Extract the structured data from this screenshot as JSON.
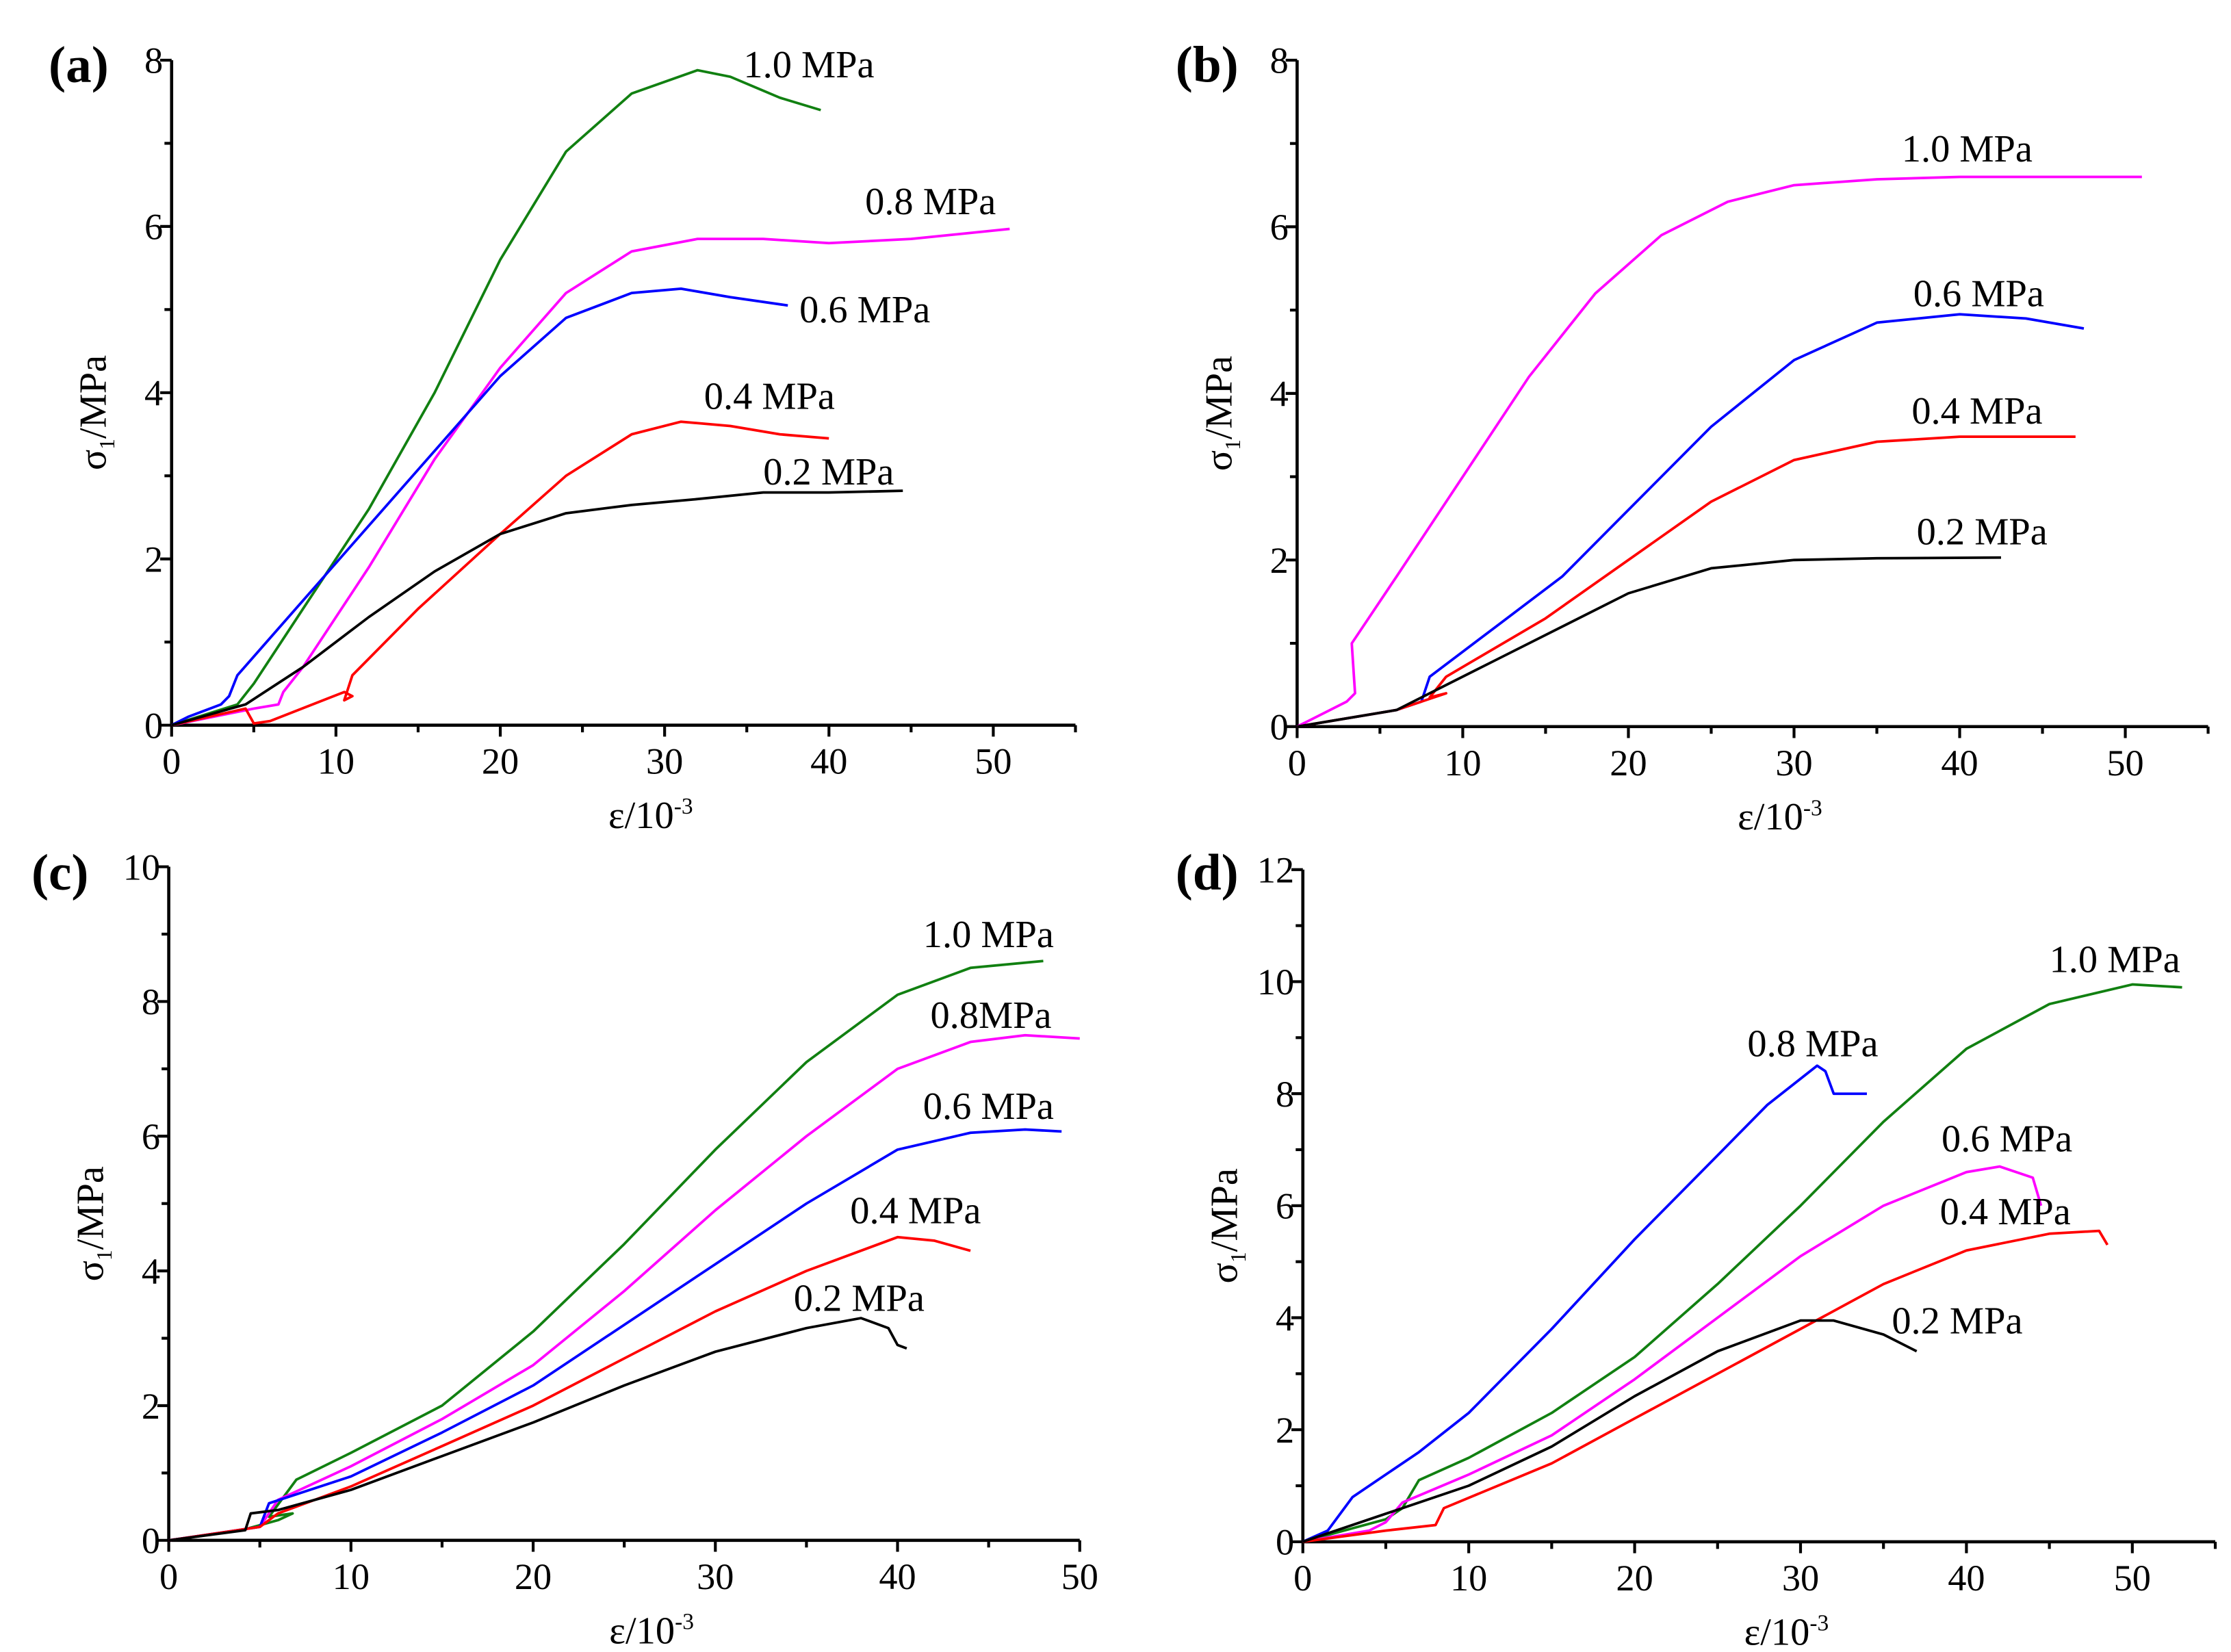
{
  "chart_data": [
    {
      "type": "line",
      "panel_label": "(a)",
      "xlabel_main": "ε/10",
      "xlabel_sup": "-3",
      "ylabel_main": "σ",
      "ylabel_sub": "1",
      "ylabel_rest": "/MPa",
      "xlim": [
        0,
        55
      ],
      "ylim": [
        0,
        8
      ],
      "xticks": [
        0,
        10,
        20,
        30,
        40,
        50
      ],
      "xminor": [
        5,
        15,
        25,
        35,
        45,
        55
      ],
      "yticks": [
        0,
        2,
        4,
        6,
        8
      ],
      "yminor": [
        1,
        3,
        5,
        7
      ],
      "series": [
        {
          "name": "1.0 MPa",
          "color": "#118011",
          "label_at": [
            34.8,
            7.95
          ],
          "x": [
            0,
            4,
            5,
            8,
            12,
            16,
            20,
            24,
            28,
            32,
            34,
            37,
            39.5
          ],
          "y": [
            0,
            0.25,
            0.5,
            1.4,
            2.6,
            4.0,
            5.6,
            6.9,
            7.6,
            7.88,
            7.8,
            7.55,
            7.4
          ]
        },
        {
          "name": "0.8 MPa",
          "color": "#ff00ff",
          "label_at": [
            42.2,
            6.3
          ],
          "x": [
            0,
            5,
            6.5,
            6.8,
            8,
            12,
            16,
            20,
            24,
            28,
            32,
            36,
            40,
            45,
            51
          ],
          "y": [
            0,
            0.2,
            0.25,
            0.4,
            0.7,
            1.9,
            3.2,
            4.3,
            5.2,
            5.7,
            5.85,
            5.85,
            5.8,
            5.85,
            5.97
          ]
        },
        {
          "name": "0.6 MPa",
          "color": "#0000ff",
          "label_at": [
            38.2,
            5.0
          ],
          "x": [
            0,
            1,
            3,
            3.5,
            4,
            8,
            12,
            16,
            20,
            24,
            28,
            31,
            34,
            37.5
          ],
          "y": [
            0,
            0.1,
            0.25,
            0.35,
            0.6,
            1.5,
            2.4,
            3.3,
            4.2,
            4.9,
            5.2,
            5.25,
            5.15,
            5.05
          ]
        },
        {
          "name": "0.4 MPa",
          "color": "#ff0000",
          "label_at": [
            32.4,
            3.96
          ],
          "x": [
            0,
            4.5,
            5,
            6,
            10.5,
            11,
            10.5,
            11,
            15,
            20,
            24,
            28,
            31,
            34,
            37,
            40
          ],
          "y": [
            0,
            0.2,
            0.02,
            0.05,
            0.4,
            0.35,
            0.3,
            0.6,
            1.4,
            2.3,
            3.0,
            3.5,
            3.65,
            3.6,
            3.5,
            3.45
          ]
        },
        {
          "name": "0.2 MPa",
          "color": "#000000",
          "label_at": [
            36.0,
            3.05
          ],
          "x": [
            0,
            4.5,
            8,
            12,
            16,
            20,
            24,
            28,
            32,
            36,
            40,
            44.5
          ],
          "y": [
            0,
            0.25,
            0.7,
            1.3,
            1.85,
            2.3,
            2.55,
            2.65,
            2.72,
            2.8,
            2.8,
            2.82
          ]
        }
      ]
    },
    {
      "type": "line",
      "panel_label": "(b)",
      "xlabel_main": "ε/10",
      "xlabel_sup": "-3",
      "ylabel_main": "σ",
      "ylabel_sub": "1",
      "ylabel_rest": "/MPa",
      "xlim": [
        0,
        55
      ],
      "ylim": [
        0,
        8
      ],
      "xticks": [
        0,
        10,
        20,
        30,
        40,
        50
      ],
      "xminor": [
        5,
        15,
        25,
        35,
        45,
        55
      ],
      "yticks": [
        0,
        2,
        4,
        6,
        8
      ],
      "yminor": [
        1,
        3,
        5,
        7
      ],
      "series": [
        {
          "name": "1.0 MPa",
          "color": "#ff00ff",
          "label_at": [
            36.5,
            6.94
          ],
          "x": [
            0,
            3,
            3.5,
            3.3,
            6,
            10,
            14,
            18,
            22,
            26,
            30,
            35,
            40,
            51
          ],
          "y": [
            0,
            0.3,
            0.4,
            1.0,
            1.8,
            3.0,
            4.2,
            5.2,
            5.9,
            6.3,
            6.5,
            6.57,
            6.6,
            6.6
          ]
        },
        {
          "name": "0.6 MPa",
          "color": "#0000ff",
          "label_at": [
            37.2,
            5.2
          ],
          "x": [
            0,
            6,
            7.5,
            8,
            12,
            16,
            20,
            25,
            30,
            35,
            40,
            44,
            47.5
          ],
          "y": [
            0,
            0.2,
            0.3,
            0.6,
            1.2,
            1.8,
            2.6,
            3.6,
            4.4,
            4.85,
            4.95,
            4.9,
            4.78
          ]
        },
        {
          "name": "0.4 MPa",
          "color": "#ff0000",
          "label_at": [
            37.1,
            3.79
          ],
          "x": [
            0,
            6,
            9,
            8,
            9,
            15,
            20,
            25,
            30,
            35,
            40,
            47
          ],
          "y": [
            0,
            0.2,
            0.4,
            0.35,
            0.6,
            1.3,
            2.0,
            2.7,
            3.2,
            3.42,
            3.48,
            3.48
          ]
        },
        {
          "name": "0.2 MPa",
          "color": "#000000",
          "label_at": [
            37.4,
            2.34
          ],
          "x": [
            0,
            6,
            8,
            12,
            16,
            20,
            25,
            30,
            35,
            42.5
          ],
          "y": [
            0,
            0.2,
            0.4,
            0.8,
            1.2,
            1.6,
            1.9,
            2.0,
            2.02,
            2.03
          ]
        }
      ]
    },
    {
      "type": "line",
      "panel_label": "(c)",
      "xlabel_main": "ε/10",
      "xlabel_sup": "-3",
      "ylabel_main": "σ",
      "ylabel_sub": "1",
      "ylabel_rest": "/MPa",
      "xlim": [
        0,
        50
      ],
      "ylim": [
        0,
        10
      ],
      "xticks": [
        0,
        10,
        20,
        30,
        40,
        50
      ],
      "xminor": [
        5,
        15,
        25,
        35,
        45
      ],
      "yticks": [
        0,
        2,
        4,
        6,
        8,
        10
      ],
      "yminor": [
        1,
        3,
        5,
        7,
        9
      ],
      "series": [
        {
          "name": "1.0 MPa",
          "color": "#118011",
          "label_at": [
            41.4,
            9.0
          ],
          "x": [
            0,
            4,
            6,
            6.8,
            5.5,
            7,
            10,
            15,
            20,
            25,
            30,
            35,
            40,
            44,
            48
          ],
          "y": [
            0,
            0.15,
            0.3,
            0.4,
            0.35,
            0.9,
            1.3,
            2.0,
            3.1,
            4.4,
            5.8,
            7.1,
            8.1,
            8.5,
            8.6
          ]
        },
        {
          "name": "0.8MPa",
          "color": "#ff00ff",
          "label_at": [
            41.8,
            7.8
          ],
          "x": [
            0,
            5,
            6,
            10,
            15,
            20,
            25,
            30,
            35,
            40,
            44,
            47,
            50
          ],
          "y": [
            0,
            0.2,
            0.6,
            1.1,
            1.8,
            2.6,
            3.7,
            4.9,
            6.0,
            7.0,
            7.4,
            7.5,
            7.45
          ]
        },
        {
          "name": "0.6 MPa",
          "color": "#0000ff",
          "label_at": [
            41.4,
            6.45
          ],
          "x": [
            0,
            5,
            5.5,
            10,
            15,
            20,
            25,
            30,
            35,
            40,
            44,
            47,
            49
          ],
          "y": [
            0,
            0.2,
            0.55,
            0.95,
            1.6,
            2.3,
            3.2,
            4.1,
            5.0,
            5.8,
            6.05,
            6.1,
            6.07
          ]
        },
        {
          "name": "0.4 MPa",
          "color": "#ff0000",
          "label_at": [
            37.4,
            4.9
          ],
          "x": [
            0,
            5,
            6,
            10,
            15,
            20,
            25,
            30,
            35,
            40,
            42,
            44
          ],
          "y": [
            0,
            0.2,
            0.4,
            0.8,
            1.4,
            2.0,
            2.7,
            3.4,
            4.0,
            4.5,
            4.45,
            4.3
          ]
        },
        {
          "name": "0.2 MPa",
          "color": "#000000",
          "label_at": [
            34.3,
            3.6
          ],
          "x": [
            0,
            4.2,
            4.5,
            6,
            10,
            15,
            20,
            25,
            30,
            35,
            38,
            39.5,
            40,
            40.5
          ],
          "y": [
            0,
            0.15,
            0.4,
            0.45,
            0.75,
            1.25,
            1.75,
            2.3,
            2.8,
            3.15,
            3.3,
            3.15,
            2.9,
            2.85
          ]
        }
      ]
    },
    {
      "type": "line",
      "panel_label": "(d)",
      "xlabel_main": "ε/10",
      "xlabel_sup": "-3",
      "ylabel_main": "σ",
      "ylabel_sub": "1",
      "ylabel_rest": "/MPa",
      "xlim": [
        0,
        55
      ],
      "ylim": [
        0,
        12
      ],
      "xticks": [
        0,
        10,
        20,
        30,
        40,
        50
      ],
      "xminor": [
        5,
        15,
        25,
        35,
        45,
        55
      ],
      "yticks": [
        0,
        2,
        4,
        6,
        8,
        10,
        12
      ],
      "yminor": [
        1,
        3,
        5,
        7,
        9,
        11
      ],
      "series": [
        {
          "name": "1.0 MPa",
          "color": "#118011",
          "label_at": [
            45.0,
            10.4
          ],
          "x": [
            0,
            5,
            6,
            7,
            10,
            15,
            20,
            25,
            30,
            35,
            40,
            45,
            50,
            53
          ],
          "y": [
            0,
            0.4,
            0.6,
            1.1,
            1.5,
            2.3,
            3.3,
            4.6,
            6.0,
            7.5,
            8.8,
            9.6,
            9.95,
            9.9
          ]
        },
        {
          "name": "0.8 MPa",
          "color": "#0000ff",
          "label_at": [
            26.8,
            8.9
          ],
          "x": [
            0,
            1.5,
            3,
            7,
            10,
            15,
            20,
            25,
            28,
            31,
            31.5,
            32,
            33,
            34
          ],
          "y": [
            0,
            0.2,
            0.8,
            1.6,
            2.3,
            3.8,
            5.4,
            6.9,
            7.8,
            8.5,
            8.4,
            8.0,
            8.0,
            8.0
          ]
        },
        {
          "name": "0.6 MPa",
          "color": "#ff00ff",
          "label_at": [
            38.5,
            7.2
          ],
          "x": [
            0,
            4,
            5,
            6,
            10,
            15,
            20,
            25,
            30,
            35,
            40,
            42,
            44,
            44.5
          ],
          "y": [
            0,
            0.2,
            0.35,
            0.7,
            1.2,
            1.9,
            2.9,
            4.0,
            5.1,
            6.0,
            6.6,
            6.7,
            6.5,
            6.0
          ]
        },
        {
          "name": "0.4 MPa",
          "color": "#ff0000",
          "label_at": [
            38.4,
            5.9
          ],
          "x": [
            0,
            5,
            8,
            8.5,
            15,
            20,
            25,
            30,
            35,
            40,
            45,
            48,
            48.5
          ],
          "y": [
            0,
            0.2,
            0.3,
            0.6,
            1.4,
            2.2,
            3.0,
            3.8,
            4.6,
            5.2,
            5.5,
            5.55,
            5.3
          ]
        },
        {
          "name": "0.2 MPa",
          "color": "#000000",
          "label_at": [
            35.5,
            3.95
          ],
          "x": [
            0,
            5,
            10,
            15,
            20,
            25,
            30,
            32,
            35,
            37
          ],
          "y": [
            0,
            0.5,
            1.0,
            1.7,
            2.6,
            3.4,
            3.95,
            3.95,
            3.7,
            3.4
          ]
        }
      ]
    }
  ]
}
